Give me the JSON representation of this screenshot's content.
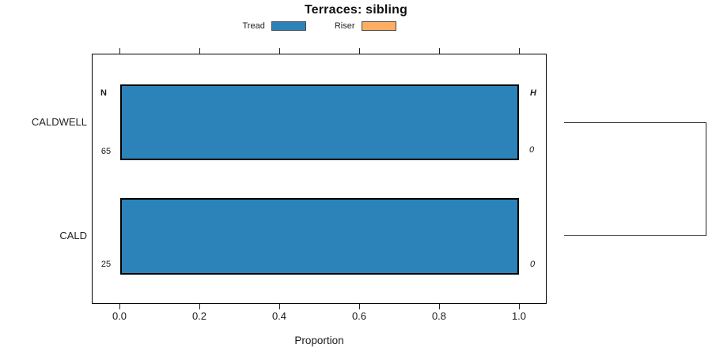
{
  "title": "Terraces: sibling",
  "legend": {
    "items": [
      {
        "label": "Tread",
        "color": "#2b83ba"
      },
      {
        "label": "Riser",
        "color": "#fdae61"
      }
    ]
  },
  "axis": {
    "xlabel": "Proportion",
    "ticks": [
      "0.0",
      "0.2",
      "0.4",
      "0.6",
      "0.8",
      "1.0"
    ]
  },
  "columns": {
    "n_header": "N",
    "h_header": "H"
  },
  "rows": [
    {
      "category": "CALDWELL",
      "n": "65",
      "h": "0"
    },
    {
      "category": "CALD",
      "n": "25",
      "h": "0"
    }
  ],
  "colors": {
    "tread": "#2b83ba",
    "riser": "#fdae61",
    "bar_border": "#000000",
    "frame": "#000000",
    "bracket": "#333333"
  },
  "chart_data": {
    "type": "bar",
    "orientation": "horizontal",
    "title": "Terraces: sibling",
    "xlabel": "Proportion",
    "ylabel": "",
    "xlim": [
      0,
      1
    ],
    "xticks": [
      0.0,
      0.2,
      0.4,
      0.6,
      0.8,
      1.0
    ],
    "categories": [
      "CALDWELL",
      "CALD"
    ],
    "series": [
      {
        "name": "Tread",
        "color": "#2b83ba",
        "values": [
          1.0,
          1.0
        ]
      },
      {
        "name": "Riser",
        "color": "#fdae61",
        "values": [
          0.0,
          0.0
        ]
      }
    ],
    "annotations": {
      "n_header": "N",
      "h_header": "H",
      "n_values": [
        65,
        25
      ],
      "h_values": [
        0,
        0
      ],
      "right_bracket": "dendrogram-style bracket joining CALDWELL and CALD rows on the right side"
    },
    "legend_position": "top-center",
    "grid": false,
    "frame": true,
    "ticks_mirrored_top": true
  }
}
